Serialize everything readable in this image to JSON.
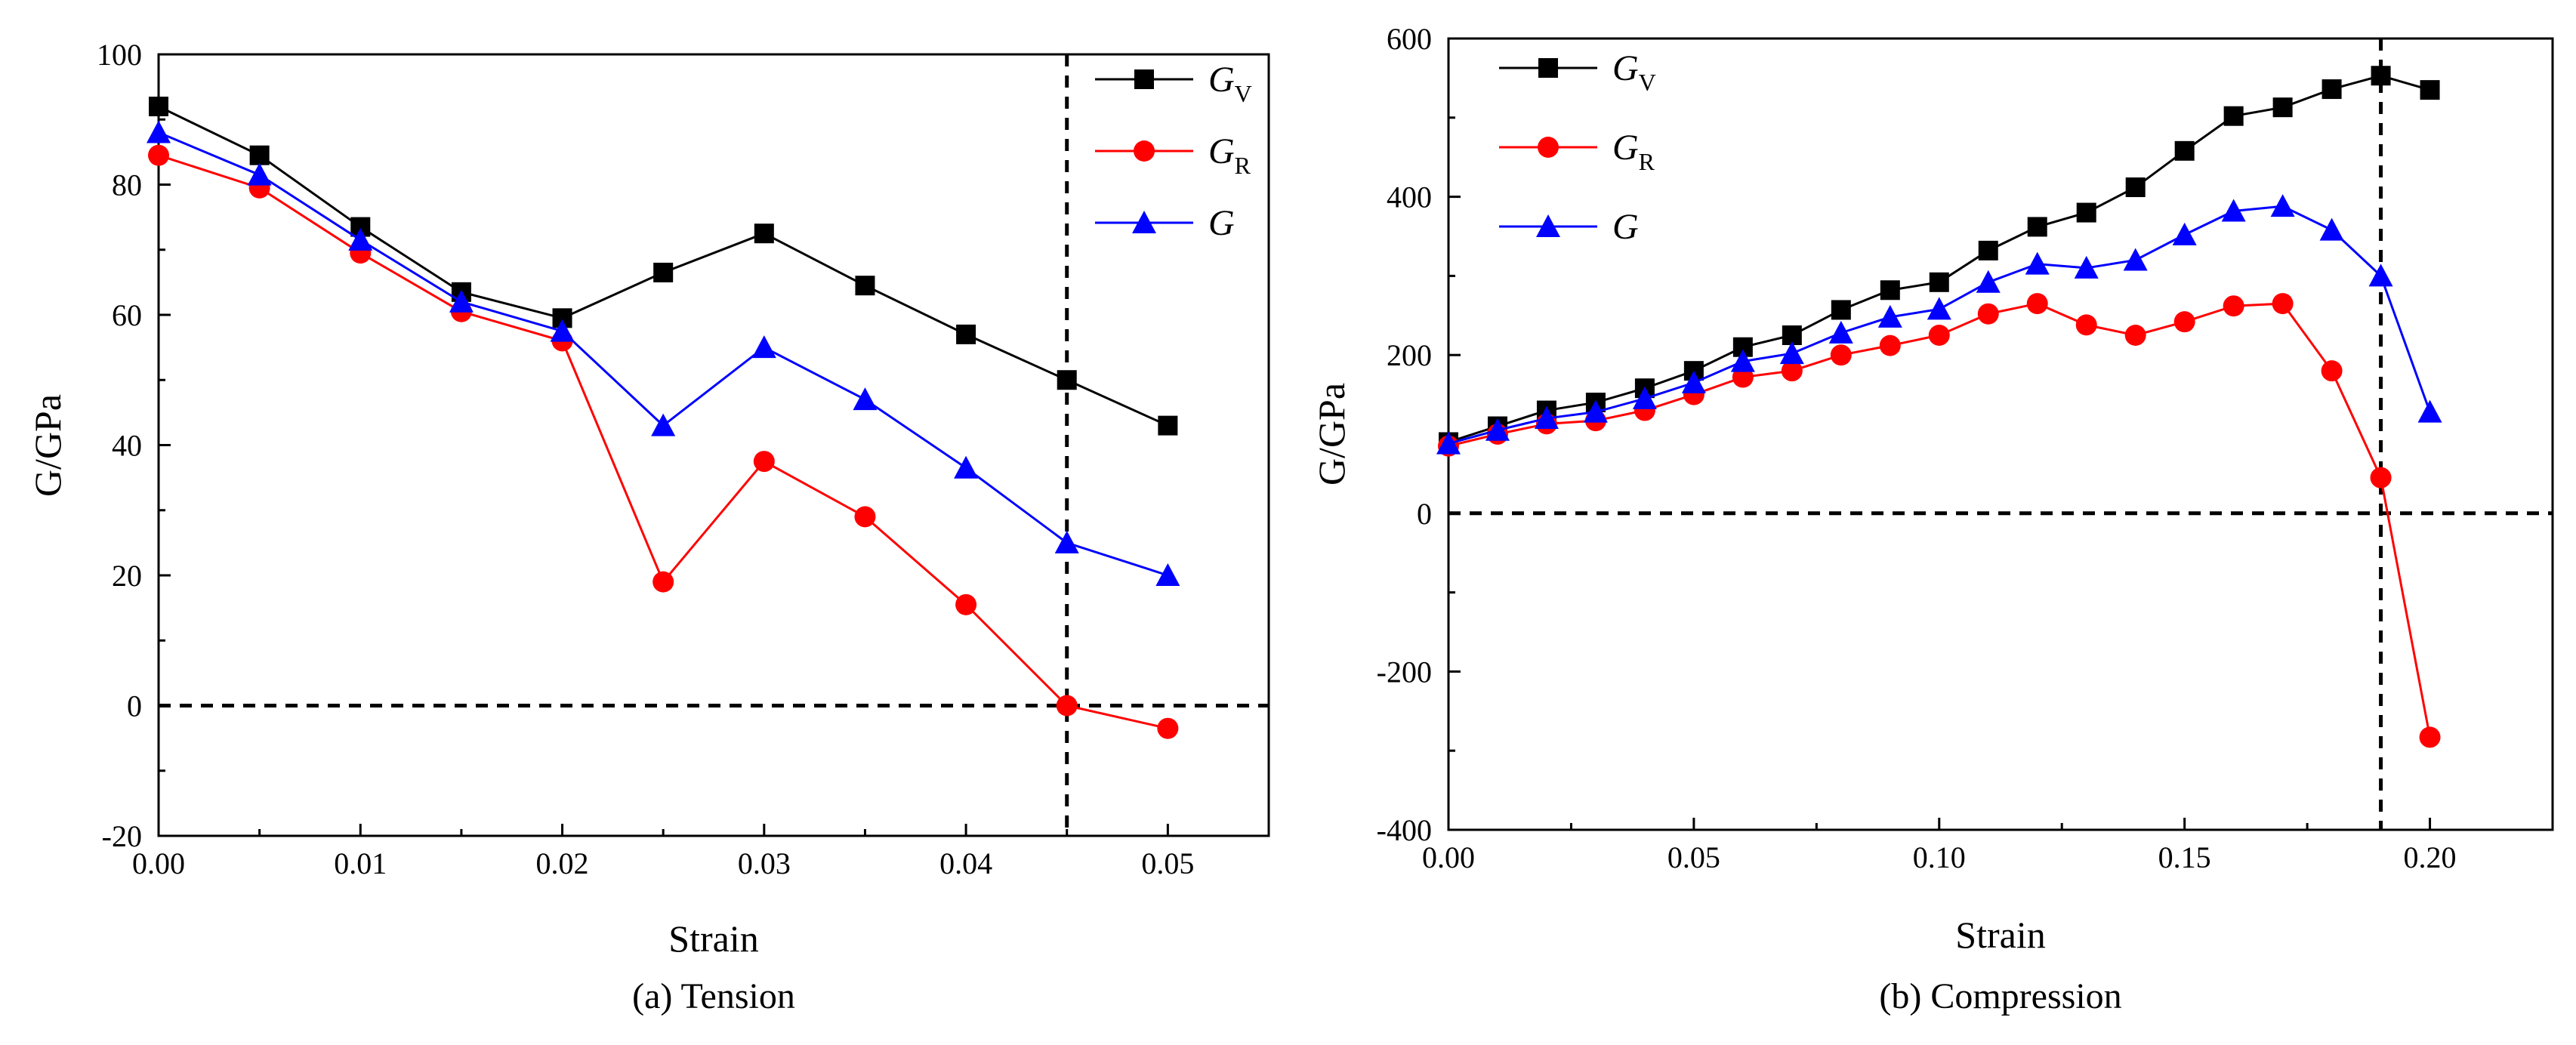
{
  "chart_data": [
    {
      "type": "line",
      "caption": "(a) Tension",
      "xlabel": "Strain",
      "ylabel": "G/GPa",
      "xlim": [
        0,
        0.055
      ],
      "ylim": [
        -20,
        100
      ],
      "xticks": [
        0,
        0.01,
        0.02,
        0.03,
        0.04,
        0.05
      ],
      "xtick_labels": [
        "0.00",
        "0.01",
        "0.02",
        "0.03",
        "0.04",
        "0.05"
      ],
      "yticks": [
        -20,
        0,
        20,
        40,
        60,
        80,
        100
      ],
      "ytick_labels": [
        "-20",
        "0",
        "20",
        "40",
        "60",
        "80",
        "100"
      ],
      "x": [
        0,
        0.005,
        0.01,
        0.015,
        0.02,
        0.025,
        0.03,
        0.035,
        0.04,
        0.045,
        0.05
      ],
      "hline": 0,
      "vline": 0.045,
      "legend_position": "top-right",
      "series": [
        {
          "name": "G",
          "sub": "V",
          "color": "#000000",
          "marker": "square",
          "values": [
            92,
            84.5,
            73.5,
            63.5,
            59.5,
            66.5,
            72.5,
            64.5,
            57,
            50,
            43
          ]
        },
        {
          "name": "G",
          "sub": "R",
          "color": "#ff0000",
          "marker": "circle",
          "values": [
            84.5,
            79.5,
            69.5,
            60.5,
            56,
            19,
            37.5,
            29,
            15.5,
            0,
            -3.5
          ]
        },
        {
          "name": "G",
          "sub": "",
          "color": "#0000ff",
          "marker": "triangle",
          "values": [
            88,
            81.5,
            71.5,
            62,
            57.5,
            43,
            55,
            47,
            36.5,
            25,
            20
          ]
        }
      ]
    },
    {
      "type": "line",
      "caption": "(b) Compression",
      "xlabel": "Strain",
      "ylabel": "G/GPa",
      "xlim": [
        0,
        0.225
      ],
      "ylim": [
        -400,
        600
      ],
      "xticks": [
        0,
        0.05,
        0.1,
        0.15,
        0.2
      ],
      "xtick_labels": [
        "0.00",
        "0.05",
        "0.10",
        "0.15",
        "0.20"
      ],
      "yticks": [
        -400,
        -200,
        0,
        200,
        400,
        600
      ],
      "ytick_labels": [
        "-400",
        "-200",
        "0",
        "200",
        "400",
        "600"
      ],
      "x": [
        0,
        0.01,
        0.02,
        0.03,
        0.04,
        0.05,
        0.06,
        0.07,
        0.08,
        0.09,
        0.1,
        0.11,
        0.12,
        0.13,
        0.14,
        0.15,
        0.16,
        0.17,
        0.18,
        0.19,
        0.2
      ],
      "hline": 0,
      "vline": 0.19,
      "legend_position": "top-left",
      "series": [
        {
          "name": "G",
          "sub": "V",
          "color": "#000000",
          "marker": "square",
          "values": [
            90,
            110,
            130,
            140,
            158,
            180,
            210,
            225,
            257,
            282,
            292,
            332,
            362,
            380,
            412,
            458,
            502,
            513,
            536,
            553,
            535
          ]
        },
        {
          "name": "G",
          "sub": "R",
          "color": "#ff0000",
          "marker": "circle",
          "values": [
            85,
            100,
            113,
            117,
            130,
            150,
            172,
            180,
            200,
            212,
            225,
            252,
            265,
            238,
            225,
            242,
            262,
            265,
            180,
            45,
            -283
          ]
        },
        {
          "name": "G",
          "sub": "",
          "color": "#0000ff",
          "marker": "triangle",
          "values": [
            88,
            105,
            120,
            128,
            145,
            165,
            192,
            202,
            228,
            248,
            258,
            292,
            315,
            310,
            320,
            352,
            382,
            388,
            358,
            300,
            128
          ]
        }
      ]
    }
  ]
}
